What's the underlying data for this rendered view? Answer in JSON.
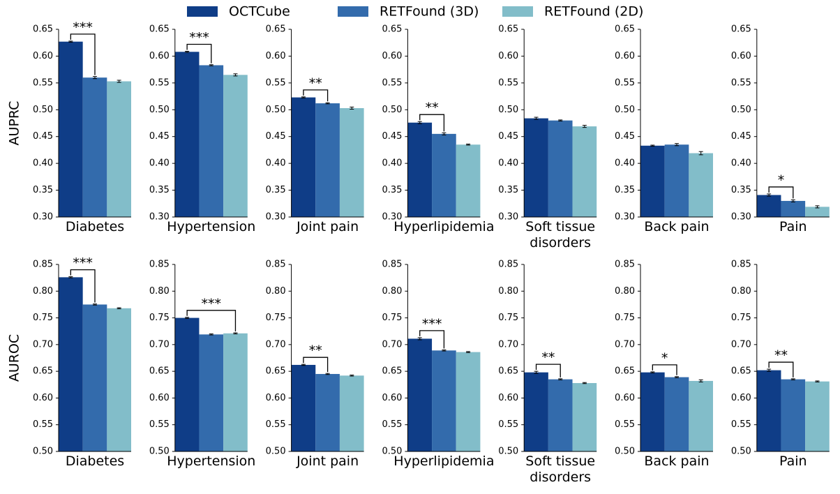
{
  "chart_data": [
    {
      "type": "bar",
      "xlabel": "Diabetes",
      "ylabel": "AUPRC",
      "ylim": [
        0.3,
        0.65
      ],
      "yticks": [
        {
          "value": 0.3,
          "label": "0.30"
        },
        {
          "value": 0.35,
          "label": "0.35"
        },
        {
          "value": 0.4,
          "label": "0.40"
        },
        {
          "value": 0.45,
          "label": "0.45"
        },
        {
          "value": 0.5,
          "label": "0.50"
        },
        {
          "value": 0.55,
          "label": "0.55"
        },
        {
          "value": 0.6,
          "label": "0.60"
        },
        {
          "value": 0.65,
          "label": "0.65"
        }
      ],
      "series": [
        {
          "name": "OCTCube",
          "color": "#0f3d87",
          "values": [
            0.627
          ],
          "errors": [
            0.001
          ]
        },
        {
          "name": "RETFound (3D)",
          "color": "#336bac",
          "values": [
            0.56
          ],
          "errors": [
            0.002
          ]
        },
        {
          "name": "RETFound (2D)",
          "color": "#82bdc9",
          "values": [
            0.553
          ],
          "errors": [
            0.002
          ]
        }
      ],
      "significance": "***",
      "pair": [
        0,
        1
      ]
    },
    {
      "type": "bar",
      "xlabel": "Hypertension",
      "ylim": [
        0.3,
        0.65
      ],
      "yticks": [
        {
          "value": 0.3,
          "label": "0.30"
        },
        {
          "value": 0.35,
          "label": "0.35"
        },
        {
          "value": 0.4,
          "label": "0.40"
        },
        {
          "value": 0.45,
          "label": "0.45"
        },
        {
          "value": 0.5,
          "label": "0.50"
        },
        {
          "value": 0.55,
          "label": "0.55"
        },
        {
          "value": 0.6,
          "label": "0.60"
        },
        {
          "value": 0.65,
          "label": "0.65"
        }
      ],
      "series": [
        {
          "name": "OCTCube",
          "color": "#0f3d87",
          "values": [
            0.608
          ],
          "errors": [
            0.001
          ]
        },
        {
          "name": "RETFound (3D)",
          "color": "#336bac",
          "values": [
            0.583
          ],
          "errors": [
            0.001
          ]
        },
        {
          "name": "RETFound (2D)",
          "color": "#82bdc9",
          "values": [
            0.565
          ],
          "errors": [
            0.002
          ]
        }
      ],
      "significance": "***",
      "pair": [
        0,
        1
      ]
    },
    {
      "type": "bar",
      "xlabel": "Joint pain",
      "ylim": [
        0.3,
        0.65
      ],
      "yticks": [
        {
          "value": 0.3,
          "label": "0.30"
        },
        {
          "value": 0.35,
          "label": "0.35"
        },
        {
          "value": 0.4,
          "label": "0.40"
        },
        {
          "value": 0.45,
          "label": "0.45"
        },
        {
          "value": 0.5,
          "label": "0.50"
        },
        {
          "value": 0.55,
          "label": "0.55"
        },
        {
          "value": 0.6,
          "label": "0.60"
        },
        {
          "value": 0.65,
          "label": "0.65"
        }
      ],
      "series": [
        {
          "name": "OCTCube",
          "color": "#0f3d87",
          "values": [
            0.523
          ],
          "errors": [
            0.001
          ]
        },
        {
          "name": "RETFound (3D)",
          "color": "#336bac",
          "values": [
            0.512
          ],
          "errors": [
            0.001
          ]
        },
        {
          "name": "RETFound (2D)",
          "color": "#82bdc9",
          "values": [
            0.503
          ],
          "errors": [
            0.002
          ]
        }
      ],
      "significance": "**",
      "pair": [
        0,
        1
      ]
    },
    {
      "type": "bar",
      "xlabel": "Hyperlipidemia",
      "ylim": [
        0.3,
        0.65
      ],
      "yticks": [
        {
          "value": 0.3,
          "label": "0.30"
        },
        {
          "value": 0.35,
          "label": "0.35"
        },
        {
          "value": 0.4,
          "label": "0.40"
        },
        {
          "value": 0.45,
          "label": "0.45"
        },
        {
          "value": 0.5,
          "label": "0.50"
        },
        {
          "value": 0.55,
          "label": "0.55"
        },
        {
          "value": 0.6,
          "label": "0.60"
        },
        {
          "value": 0.65,
          "label": "0.65"
        }
      ],
      "series": [
        {
          "name": "OCTCube",
          "color": "#0f3d87",
          "values": [
            0.476
          ],
          "errors": [
            0.002
          ]
        },
        {
          "name": "RETFound (3D)",
          "color": "#336bac",
          "values": [
            0.455
          ],
          "errors": [
            0.002
          ]
        },
        {
          "name": "RETFound (2D)",
          "color": "#82bdc9",
          "values": [
            0.435
          ],
          "errors": [
            0.001
          ]
        }
      ],
      "significance": "**",
      "pair": [
        0,
        1
      ]
    },
    {
      "type": "bar",
      "xlabel": "Soft tissue\ndisorders",
      "ylim": [
        0.3,
        0.65
      ],
      "yticks": [
        {
          "value": 0.3,
          "label": "0.30"
        },
        {
          "value": 0.35,
          "label": "0.35"
        },
        {
          "value": 0.4,
          "label": "0.40"
        },
        {
          "value": 0.45,
          "label": "0.45"
        },
        {
          "value": 0.5,
          "label": "0.50"
        },
        {
          "value": 0.55,
          "label": "0.55"
        },
        {
          "value": 0.6,
          "label": "0.60"
        },
        {
          "value": 0.65,
          "label": "0.65"
        }
      ],
      "series": [
        {
          "name": "OCTCube",
          "color": "#0f3d87",
          "values": [
            0.484
          ],
          "errors": [
            0.002
          ]
        },
        {
          "name": "RETFound (3D)",
          "color": "#336bac",
          "values": [
            0.48
          ],
          "errors": [
            0.001
          ]
        },
        {
          "name": "RETFound (2D)",
          "color": "#82bdc9",
          "values": [
            0.469
          ],
          "errors": [
            0.002
          ]
        }
      ]
    },
    {
      "type": "bar",
      "xlabel": "Back pain",
      "ylim": [
        0.3,
        0.65
      ],
      "yticks": [
        {
          "value": 0.3,
          "label": "0.30"
        },
        {
          "value": 0.35,
          "label": "0.35"
        },
        {
          "value": 0.4,
          "label": "0.40"
        },
        {
          "value": 0.45,
          "label": "0.45"
        },
        {
          "value": 0.5,
          "label": "0.50"
        },
        {
          "value": 0.55,
          "label": "0.55"
        },
        {
          "value": 0.6,
          "label": "0.60"
        },
        {
          "value": 0.65,
          "label": "0.65"
        }
      ],
      "series": [
        {
          "name": "OCTCube",
          "color": "#0f3d87",
          "values": [
            0.433
          ],
          "errors": [
            0.001
          ]
        },
        {
          "name": "RETFound (3D)",
          "color": "#336bac",
          "values": [
            0.435
          ],
          "errors": [
            0.002
          ]
        },
        {
          "name": "RETFound (2D)",
          "color": "#82bdc9",
          "values": [
            0.419
          ],
          "errors": [
            0.003
          ]
        }
      ]
    },
    {
      "type": "bar",
      "xlabel": "Pain",
      "ylim": [
        0.3,
        0.65
      ],
      "yticks": [
        {
          "value": 0.3,
          "label": "0.30"
        },
        {
          "value": 0.35,
          "label": "0.35"
        },
        {
          "value": 0.4,
          "label": "0.40"
        },
        {
          "value": 0.45,
          "label": "0.45"
        },
        {
          "value": 0.5,
          "label": "0.50"
        },
        {
          "value": 0.55,
          "label": "0.55"
        },
        {
          "value": 0.6,
          "label": "0.60"
        },
        {
          "value": 0.65,
          "label": "0.65"
        }
      ],
      "series": [
        {
          "name": "OCTCube",
          "color": "#0f3d87",
          "values": [
            0.341
          ],
          "errors": [
            0.002
          ]
        },
        {
          "name": "RETFound (3D)",
          "color": "#336bac",
          "values": [
            0.33
          ],
          "errors": [
            0.002
          ]
        },
        {
          "name": "RETFound (2D)",
          "color": "#82bdc9",
          "values": [
            0.319
          ],
          "errors": [
            0.002
          ]
        }
      ],
      "significance": "*",
      "pair": [
        0,
        1
      ]
    },
    {
      "type": "bar",
      "xlabel": "Diabetes",
      "ylabel": "AUROC",
      "ylim": [
        0.5,
        0.85
      ],
      "yticks": [
        {
          "value": 0.5,
          "label": "0.50"
        },
        {
          "value": 0.55,
          "label": "0.55"
        },
        {
          "value": 0.6,
          "label": "0.60"
        },
        {
          "value": 0.65,
          "label": "0.65"
        },
        {
          "value": 0.7,
          "label": "0.70"
        },
        {
          "value": 0.75,
          "label": "0.75"
        },
        {
          "value": 0.8,
          "label": "0.80"
        },
        {
          "value": 0.85,
          "label": "0.85"
        }
      ],
      "series": [
        {
          "name": "OCTCube",
          "color": "#0f3d87",
          "values": [
            0.826
          ],
          "errors": [
            0.001
          ]
        },
        {
          "name": "RETFound (3D)",
          "color": "#336bac",
          "values": [
            0.775
          ],
          "errors": [
            0.001
          ]
        },
        {
          "name": "RETFound (2D)",
          "color": "#82bdc9",
          "values": [
            0.768
          ],
          "errors": [
            0.001
          ]
        }
      ],
      "significance": "***",
      "pair": [
        0,
        1
      ]
    },
    {
      "type": "bar",
      "xlabel": "Hypertension",
      "ylim": [
        0.5,
        0.85
      ],
      "yticks": [
        {
          "value": 0.5,
          "label": "0.50"
        },
        {
          "value": 0.55,
          "label": "0.55"
        },
        {
          "value": 0.6,
          "label": "0.60"
        },
        {
          "value": 0.65,
          "label": "0.65"
        },
        {
          "value": 0.7,
          "label": "0.70"
        },
        {
          "value": 0.75,
          "label": "0.75"
        },
        {
          "value": 0.8,
          "label": "0.80"
        },
        {
          "value": 0.85,
          "label": "0.85"
        }
      ],
      "series": [
        {
          "name": "OCTCube",
          "color": "#0f3d87",
          "values": [
            0.75
          ],
          "errors": [
            0.001
          ]
        },
        {
          "name": "RETFound (3D)",
          "color": "#336bac",
          "values": [
            0.719
          ],
          "errors": [
            0.001
          ]
        },
        {
          "name": "RETFound (2D)",
          "color": "#82bdc9",
          "values": [
            0.721
          ],
          "errors": [
            0.001
          ]
        }
      ],
      "significance": "***",
      "pair": [
        0,
        2
      ]
    },
    {
      "type": "bar",
      "xlabel": "Joint pain",
      "ylim": [
        0.5,
        0.85
      ],
      "yticks": [
        {
          "value": 0.5,
          "label": "0.50"
        },
        {
          "value": 0.55,
          "label": "0.55"
        },
        {
          "value": 0.6,
          "label": "0.60"
        },
        {
          "value": 0.65,
          "label": "0.65"
        },
        {
          "value": 0.7,
          "label": "0.70"
        },
        {
          "value": 0.75,
          "label": "0.75"
        },
        {
          "value": 0.8,
          "label": "0.80"
        },
        {
          "value": 0.85,
          "label": "0.85"
        }
      ],
      "series": [
        {
          "name": "OCTCube",
          "color": "#0f3d87",
          "values": [
            0.662
          ],
          "errors": [
            0.001
          ]
        },
        {
          "name": "RETFound (3D)",
          "color": "#336bac",
          "values": [
            0.645
          ],
          "errors": [
            0.001
          ]
        },
        {
          "name": "RETFound (2D)",
          "color": "#82bdc9",
          "values": [
            0.642
          ],
          "errors": [
            0.001
          ]
        }
      ],
      "significance": "**",
      "pair": [
        0,
        1
      ]
    },
    {
      "type": "bar",
      "xlabel": "Hyperlipidemia",
      "ylim": [
        0.5,
        0.85
      ],
      "yticks": [
        {
          "value": 0.5,
          "label": "0.50"
        },
        {
          "value": 0.55,
          "label": "0.55"
        },
        {
          "value": 0.6,
          "label": "0.60"
        },
        {
          "value": 0.65,
          "label": "0.65"
        },
        {
          "value": 0.7,
          "label": "0.70"
        },
        {
          "value": 0.75,
          "label": "0.75"
        },
        {
          "value": 0.8,
          "label": "0.80"
        },
        {
          "value": 0.85,
          "label": "0.85"
        }
      ],
      "series": [
        {
          "name": "OCTCube",
          "color": "#0f3d87",
          "values": [
            0.711
          ],
          "errors": [
            0.002
          ]
        },
        {
          "name": "RETFound (3D)",
          "color": "#336bac",
          "values": [
            0.689
          ],
          "errors": [
            0.001
          ]
        },
        {
          "name": "RETFound (2D)",
          "color": "#82bdc9",
          "values": [
            0.686
          ],
          "errors": [
            0.001
          ]
        }
      ],
      "significance": "***",
      "pair": [
        0,
        1
      ]
    },
    {
      "type": "bar",
      "xlabel": "Soft tissue\ndisorders",
      "ylim": [
        0.5,
        0.85
      ],
      "yticks": [
        {
          "value": 0.5,
          "label": "0.50"
        },
        {
          "value": 0.55,
          "label": "0.55"
        },
        {
          "value": 0.6,
          "label": "0.60"
        },
        {
          "value": 0.65,
          "label": "0.65"
        },
        {
          "value": 0.7,
          "label": "0.70"
        },
        {
          "value": 0.75,
          "label": "0.75"
        },
        {
          "value": 0.8,
          "label": "0.80"
        },
        {
          "value": 0.85,
          "label": "0.85"
        }
      ],
      "series": [
        {
          "name": "OCTCube",
          "color": "#0f3d87",
          "values": [
            0.648
          ],
          "errors": [
            0.002
          ]
        },
        {
          "name": "RETFound (3D)",
          "color": "#336bac",
          "values": [
            0.635
          ],
          "errors": [
            0.001
          ]
        },
        {
          "name": "RETFound (2D)",
          "color": "#82bdc9",
          "values": [
            0.628
          ],
          "errors": [
            0.001
          ]
        }
      ],
      "significance": "**",
      "pair": [
        0,
        1
      ]
    },
    {
      "type": "bar",
      "xlabel": "Back pain",
      "ylim": [
        0.5,
        0.85
      ],
      "yticks": [
        {
          "value": 0.5,
          "label": "0.50"
        },
        {
          "value": 0.55,
          "label": "0.55"
        },
        {
          "value": 0.6,
          "label": "0.60"
        },
        {
          "value": 0.65,
          "label": "0.65"
        },
        {
          "value": 0.7,
          "label": "0.70"
        },
        {
          "value": 0.75,
          "label": "0.75"
        },
        {
          "value": 0.8,
          "label": "0.80"
        },
        {
          "value": 0.85,
          "label": "0.85"
        }
      ],
      "series": [
        {
          "name": "OCTCube",
          "color": "#0f3d87",
          "values": [
            0.648
          ],
          "errors": [
            0.001
          ]
        },
        {
          "name": "RETFound (3D)",
          "color": "#336bac",
          "values": [
            0.639
          ],
          "errors": [
            0.001
          ]
        },
        {
          "name": "RETFound (2D)",
          "color": "#82bdc9",
          "values": [
            0.632
          ],
          "errors": [
            0.002
          ]
        }
      ],
      "significance": "*",
      "pair": [
        0,
        1
      ]
    },
    {
      "type": "bar",
      "xlabel": "Pain",
      "ylim": [
        0.5,
        0.85
      ],
      "yticks": [
        {
          "value": 0.5,
          "label": "0.50"
        },
        {
          "value": 0.55,
          "label": "0.55"
        },
        {
          "value": 0.6,
          "label": "0.60"
        },
        {
          "value": 0.65,
          "label": "0.65"
        },
        {
          "value": 0.7,
          "label": "0.70"
        },
        {
          "value": 0.75,
          "label": "0.75"
        },
        {
          "value": 0.8,
          "label": "0.80"
        },
        {
          "value": 0.85,
          "label": "0.85"
        }
      ],
      "series": [
        {
          "name": "OCTCube",
          "color": "#0f3d87",
          "values": [
            0.652
          ],
          "errors": [
            0.002
          ]
        },
        {
          "name": "RETFound (3D)",
          "color": "#336bac",
          "values": [
            0.635
          ],
          "errors": [
            0.001
          ]
        },
        {
          "name": "RETFound (2D)",
          "color": "#82bdc9",
          "values": [
            0.631
          ],
          "errors": [
            0.001
          ]
        }
      ],
      "significance": "**",
      "pair": [
        0,
        1
      ]
    }
  ]
}
